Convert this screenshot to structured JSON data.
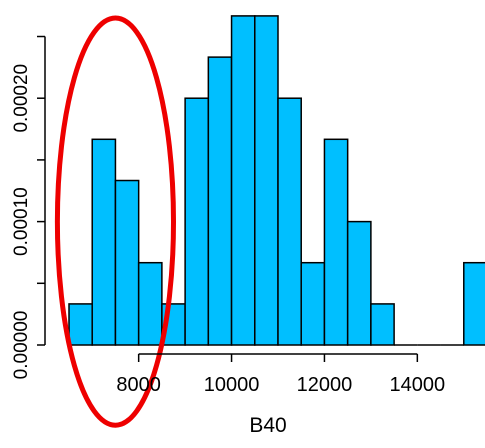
{
  "chart_data": {
    "type": "bar",
    "title": "",
    "xlabel": "B40",
    "ylabel": "",
    "xlim": [
      6500,
      15500
    ],
    "ylim": [
      0,
      0.000265
    ],
    "bin_width": 500,
    "bins": [
      {
        "start": 6500,
        "end": 7000,
        "value": 3.33e-05
      },
      {
        "start": 7000,
        "end": 7500,
        "value": 0.0001667
      },
      {
        "start": 7500,
        "end": 8000,
        "value": 0.0001333
      },
      {
        "start": 8000,
        "end": 8500,
        "value": 6.67e-05
      },
      {
        "start": 8500,
        "end": 9000,
        "value": 3.33e-05
      },
      {
        "start": 9000,
        "end": 9500,
        "value": 0.0002
      },
      {
        "start": 9500,
        "end": 10000,
        "value": 0.0002333
      },
      {
        "start": 10000,
        "end": 10500,
        "value": 0.0002667
      },
      {
        "start": 10500,
        "end": 11000,
        "value": 0.0002667
      },
      {
        "start": 11000,
        "end": 11500,
        "value": 0.0002
      },
      {
        "start": 11500,
        "end": 12000,
        "value": 6.67e-05
      },
      {
        "start": 12000,
        "end": 12500,
        "value": 0.0001667
      },
      {
        "start": 12500,
        "end": 13000,
        "value": 0.0001
      },
      {
        "start": 13000,
        "end": 13500,
        "value": 3.33e-05
      },
      {
        "start": 13500,
        "end": 14000,
        "value": 0
      },
      {
        "start": 14000,
        "end": 14500,
        "value": 0
      },
      {
        "start": 14500,
        "end": 15000,
        "value": 0
      },
      {
        "start": 15000,
        "end": 15500,
        "value": 6.67e-05
      }
    ],
    "x_ticks": [
      8000,
      10000,
      12000,
      14000
    ],
    "x_tick_labels": [
      "8000",
      "10000",
      "12000",
      "14000"
    ],
    "y_ticks": [
      0,
      0.0001,
      0.0002
    ],
    "y_tick_labels": [
      "0.00000",
      "0.00010",
      "0.00020"
    ],
    "y_minor_ticks": [
      5e-05,
      0.00015,
      0.00025
    ],
    "grid": false,
    "legend": "none",
    "bar_color": "#00BFFF",
    "bar_edge_color": "#000000",
    "annotation": {
      "shape": "ellipse",
      "color": "#EE0000",
      "center_x": 7500,
      "center_y": 0.0001,
      "x_radius": 1250,
      "y_radius": 0.000165
    }
  }
}
